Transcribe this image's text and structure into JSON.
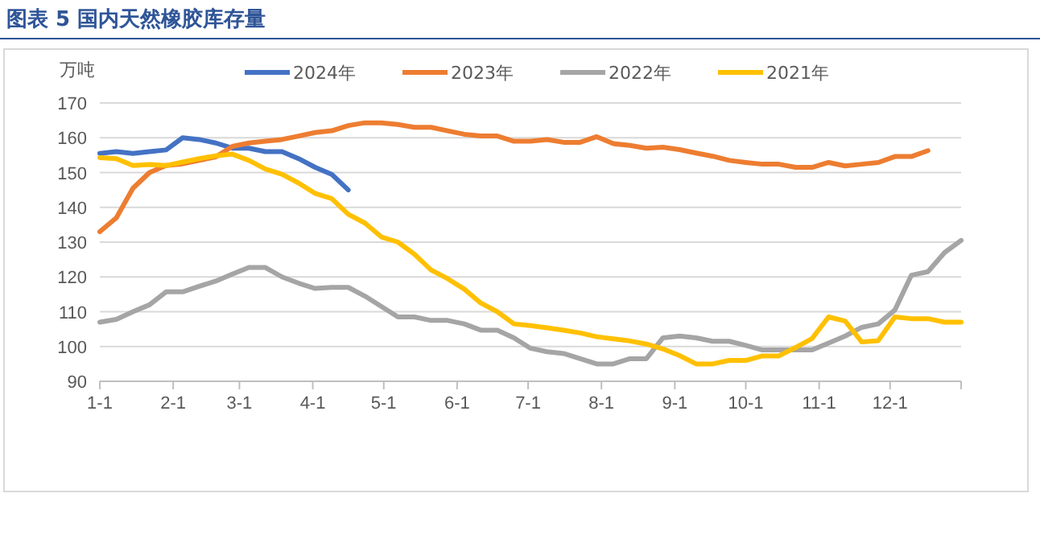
{
  "chart_data": {
    "type": "line",
    "title": "图表 5   国内天然橡胶库存量",
    "ylabel": "万吨",
    "x": [
      "--01-01",
      "--01-08",
      "--01-15",
      "--01-22",
      "--01-29",
      "--02-05",
      "--02-12",
      "--02-19",
      "--02-26",
      "--03-05",
      "--03-12",
      "--03-19",
      "--03-26",
      "--04-02",
      "--04-09",
      "--04-16",
      "--04-23",
      "--04-30",
      "--05-07",
      "--05-14",
      "--05-21",
      "--05-28",
      "--06-04",
      "--06-11",
      "--06-18",
      "--06-25",
      "--07-02",
      "--07-09",
      "--07-16",
      "--07-23",
      "--07-30",
      "--08-06",
      "--08-13",
      "--08-20",
      "--08-27",
      "--09-03",
      "--09-10",
      "--09-17",
      "--09-24",
      "--10-01",
      "--10-08",
      "--10-15",
      "--10-22",
      "--10-29",
      "--11-05",
      "--11-12",
      "--11-19",
      "--11-26",
      "--12-03",
      "--12-10",
      "--12-17",
      "--12-24",
      "--12-31"
    ],
    "series": [
      {
        "name": "2024年",
        "color": "#4472c4",
        "values": [
          155.5,
          156,
          155.5,
          156,
          156.5,
          160,
          159.5,
          158.5,
          157,
          157,
          156,
          156,
          154,
          151.5,
          149.5,
          145,
          null,
          null,
          null,
          null,
          null,
          null,
          null,
          null,
          null,
          null,
          null,
          null,
          null,
          null,
          null,
          null,
          null,
          null,
          null,
          null,
          null,
          null,
          null,
          null,
          null,
          null,
          null,
          null,
          null,
          null,
          null,
          null,
          null,
          null,
          null,
          null,
          null
        ]
      },
      {
        "name": "2023年",
        "color": "#ed7d31",
        "values": [
          133,
          137,
          145.5,
          150,
          152,
          152.5,
          153.5,
          154.5,
          157.5,
          158.5,
          159,
          159.5,
          160.5,
          161.5,
          162,
          163.5,
          164.3,
          164.3,
          163.8,
          163,
          163,
          162,
          161,
          160.5,
          160.5,
          159,
          159,
          159.5,
          158.7,
          158.7,
          160.3,
          158.3,
          157.8,
          157,
          157.3,
          156.6,
          155.6,
          154.7,
          153.5,
          152.9,
          152.4,
          152.4,
          151.5,
          151.5,
          152.9,
          151.9,
          152.4,
          152.9,
          154.6,
          154.6,
          156.3,
          null,
          null
        ]
      },
      {
        "name": "2022年",
        "color": "#a5a5a5",
        "values": [
          107,
          107.8,
          110,
          112,
          115.7,
          115.7,
          117.3,
          118.8,
          120.8,
          122.7,
          122.7,
          120,
          118.2,
          116.7,
          117,
          117,
          114.5,
          111.5,
          108.5,
          108.5,
          107.5,
          107.5,
          106.5,
          104.7,
          104.7,
          102.5,
          99.5,
          98.5,
          98,
          96.5,
          95,
          95,
          96.5,
          96.5,
          102.5,
          103,
          102.5,
          101.5,
          101.5,
          100.3,
          99,
          99,
          99,
          99,
          101,
          103,
          105.5,
          106.5,
          110.5,
          120.5,
          121.5,
          127,
          130.5
        ]
      },
      {
        "name": "2021年",
        "color": "#ffc000",
        "values": [
          154.3,
          154,
          152,
          152.3,
          152,
          153,
          154,
          154.8,
          155.3,
          153.5,
          151,
          149.5,
          147,
          144,
          142.5,
          138,
          135.5,
          131.5,
          130,
          126.5,
          122,
          119.5,
          116.5,
          112.5,
          110,
          106.5,
          106,
          105.4,
          104.7,
          103.9,
          102.8,
          102.2,
          101.6,
          100.7,
          99.3,
          97.4,
          95,
          95,
          96,
          96,
          97.3,
          97.3,
          99.7,
          102.3,
          108.5,
          107.3,
          101.3,
          101.7,
          108.5,
          108,
          108,
          107,
          107
        ]
      }
    ],
    "xlim": [
      "--01-01",
      "--12-31"
    ],
    "xticks": [
      {
        "value": "--01-01",
        "label": "1-1"
      },
      {
        "value": "--02-01",
        "label": "2-1"
      },
      {
        "value": "--03-01",
        "label": "3-1"
      },
      {
        "value": "--04-01",
        "label": "4-1"
      },
      {
        "value": "--05-01",
        "label": "5-1"
      },
      {
        "value": "--06-01",
        "label": "6-1"
      },
      {
        "value": "--07-01",
        "label": "7-1"
      },
      {
        "value": "--08-01",
        "label": "8-1"
      },
      {
        "value": "--09-01",
        "label": "9-1"
      },
      {
        "value": "--10-01",
        "label": "10-1"
      },
      {
        "value": "--11-01",
        "label": "11-1"
      },
      {
        "value": "--12-01",
        "label": "12-1"
      },
      {
        "value": "--12-31",
        "label": null
      }
    ],
    "ylim": [
      90,
      170
    ],
    "yticks": [
      90,
      100,
      110,
      120,
      130,
      140,
      150,
      160,
      170
    ],
    "grid": "y",
    "legend": "top",
    "marker": "none",
    "line_style": "solid"
  }
}
